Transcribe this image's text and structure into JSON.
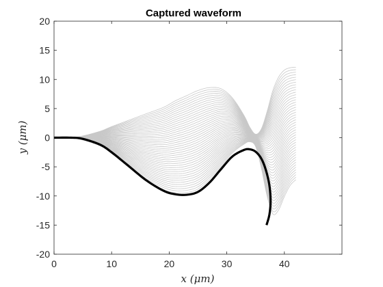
{
  "chart_data": {
    "type": "line",
    "title": "Captured waveform",
    "xlabel": "x (μm)",
    "ylabel": "y (μm)",
    "xlim": [
      0,
      50
    ],
    "ylim": [
      -20,
      20
    ],
    "x_ticks": [
      0,
      10,
      20,
      30,
      40
    ],
    "y_ticks": [
      -20,
      -15,
      -10,
      -5,
      0,
      5,
      10,
      15,
      20
    ],
    "x_tick_labels": [
      "0",
      "10",
      "20",
      "30",
      "40"
    ],
    "y_tick_labels": [
      "-20",
      "-15",
      "-10",
      "-5",
      "0",
      "5",
      "10",
      "15",
      "20"
    ],
    "grid": false,
    "colors": {
      "highlight": "#000000",
      "family": "#c8c8c8",
      "axis": "#262626"
    },
    "series": [
      {
        "role": "highlighted",
        "x": [
          0,
          3,
          5,
          8,
          10,
          13,
          16,
          19,
          21,
          23,
          25,
          27,
          29,
          31,
          33,
          34,
          35,
          36,
          36.8,
          37.4,
          37.6,
          37.4,
          36.9
        ],
        "y": [
          0,
          0,
          -0.2,
          -1.2,
          -2.5,
          -4.9,
          -7.3,
          -9.1,
          -9.7,
          -9.8,
          -9.3,
          -7.7,
          -5.4,
          -3.2,
          -2.1,
          -2.0,
          -2.4,
          -3.6,
          -5.6,
          -8.2,
          -10.9,
          -13.2,
          -15.0
        ]
      },
      {
        "role": "envelope-upper",
        "x": [
          0,
          3,
          5,
          8,
          10,
          13,
          16,
          19,
          21,
          23,
          25,
          27,
          29,
          31,
          33,
          34,
          35,
          36,
          37,
          38,
          39,
          40,
          41,
          42
        ],
        "y": [
          0,
          0,
          0.3,
          1.1,
          1.9,
          3.0,
          4.1,
          5.2,
          6.3,
          7.2,
          8.1,
          8.6,
          8.4,
          6.8,
          3.8,
          1.8,
          0.6,
          1.5,
          4.5,
          8.1,
          10.4,
          11.6,
          12.0,
          12.1
        ]
      },
      {
        "role": "envelope-lower",
        "x": [
          0,
          3,
          5,
          8,
          10,
          13,
          16,
          19,
          21,
          23,
          25,
          27,
          29,
          31,
          33,
          34,
          35,
          36,
          37,
          38,
          39,
          40,
          41,
          42
        ],
        "y": [
          0,
          0,
          -0.4,
          -1.4,
          -2.7,
          -5.1,
          -7.5,
          -9.2,
          -9.8,
          -9.8,
          -9.2,
          -7.5,
          -5.0,
          -2.6,
          -1.1,
          -0.7,
          -1.5,
          -5.2,
          -10.0,
          -13.1,
          -12.4,
          -10.1,
          -8.2,
          -7.2
        ]
      }
    ]
  }
}
